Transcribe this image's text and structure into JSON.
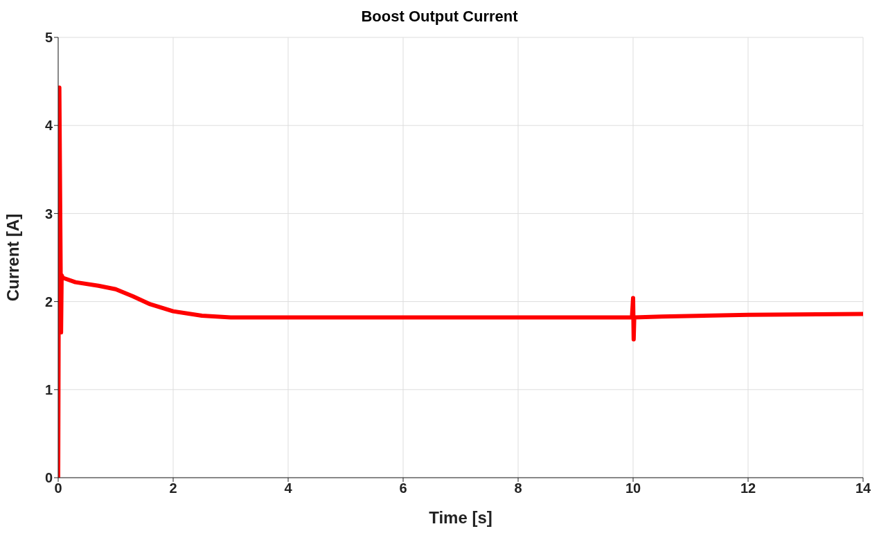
{
  "chart_data": {
    "type": "line",
    "title": "Boost Output Current",
    "xlabel": "Time   [s]",
    "ylabel": "Current [A]",
    "x": [
      0,
      0.02,
      0.04,
      0.05,
      0.06,
      0.08,
      0.3,
      0.7,
      1,
      1.3,
      1.6,
      2,
      2.5,
      3,
      9.98,
      10,
      10.01,
      10.02,
      10.5,
      12,
      14
    ],
    "series": [
      {
        "color": "#ff0000",
        "values": [
          0,
          4.43,
          2.6,
          1.65,
          2.3,
          2.27,
          2.22,
          2.18,
          2.14,
          2.06,
          1.97,
          1.89,
          1.84,
          1.82,
          1.82,
          2.04,
          1.57,
          1.82,
          1.83,
          1.85,
          1.86
        ]
      }
    ],
    "xlim": [
      0,
      14
    ],
    "xticks": [
      0,
      2,
      4,
      6,
      8,
      10,
      12,
      14
    ],
    "ylim": [
      0,
      5
    ],
    "yticks": [
      0,
      1,
      2,
      3,
      4,
      5
    ],
    "grid": true,
    "marker": "none",
    "line_style": "solid"
  }
}
